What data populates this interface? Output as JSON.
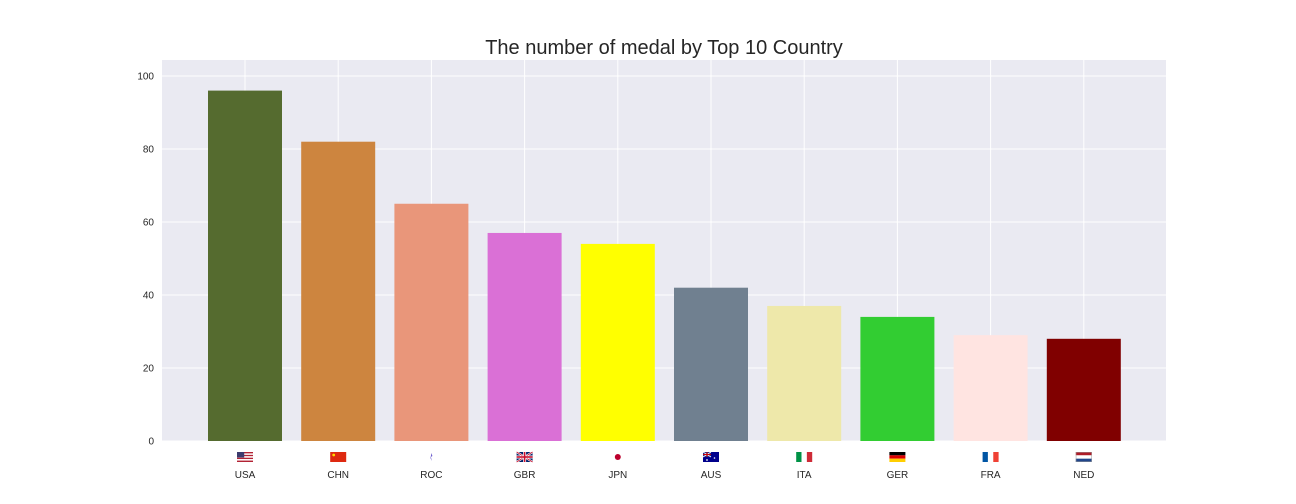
{
  "chart_data": {
    "type": "bar",
    "title": "The number of medal by Top 10 Country",
    "xlabel": "",
    "ylabel": "",
    "categories": [
      "USA",
      "CHN",
      "ROC",
      "GBR",
      "JPN",
      "AUS",
      "ITA",
      "GER",
      "FRA",
      "NED"
    ],
    "values": [
      96,
      82,
      65,
      57,
      54,
      42,
      37,
      34,
      29,
      28
    ],
    "bar_colors": [
      "#556b2f",
      "#cd853f",
      "#e9967a",
      "#da70d6",
      "#ffff00",
      "#708090",
      "#eee8aa",
      "#32cd32",
      "#ffe4e1",
      "#800000"
    ],
    "flags": [
      "us-flag-icon",
      "cn-flag-icon",
      "roc-flag-icon",
      "gb-flag-icon",
      "jp-flag-icon",
      "au-flag-icon",
      "it-flag-icon",
      "de-flag-icon",
      "fr-flag-icon",
      "nl-flag-icon"
    ],
    "ylim": [
      0,
      100
    ],
    "yticks": [
      0,
      20,
      40,
      60,
      80,
      100
    ],
    "grid": true,
    "style": {
      "plot_background": "#eaeaf2",
      "grid_color": "#ffffff",
      "text_color": "#262626"
    }
  }
}
